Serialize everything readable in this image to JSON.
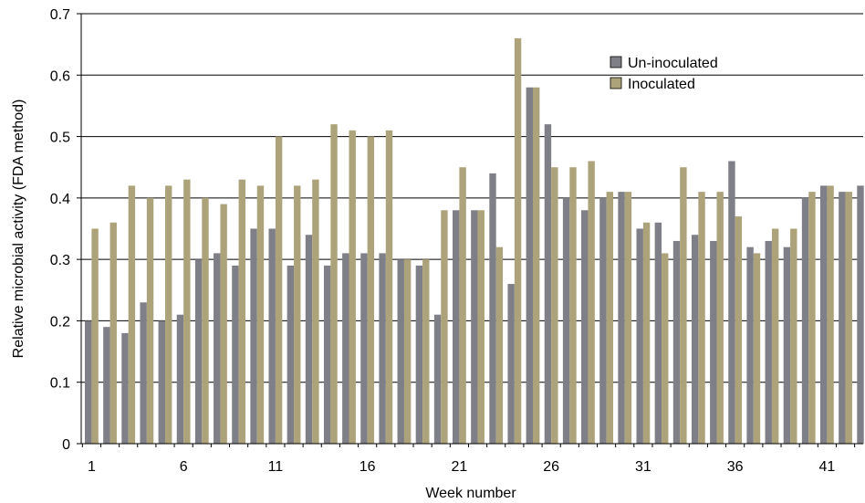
{
  "chart_data": {
    "type": "bar",
    "xlabel": "Week number",
    "ylabel": "Relative microbial activity (FDA method)",
    "ylim": [
      0,
      0.7
    ],
    "y_ticks": [
      "0",
      "0.1",
      "0.2",
      "0.3",
      "0.4",
      "0.5",
      "0.6",
      "0.7"
    ],
    "x_tick_labels": [
      {
        "week": 1,
        "label": "1"
      },
      {
        "week": 6,
        "label": "6"
      },
      {
        "week": 11,
        "label": "11"
      },
      {
        "week": 16,
        "label": "16"
      },
      {
        "week": 21,
        "label": "21"
      },
      {
        "week": 26,
        "label": "26"
      },
      {
        "week": 31,
        "label": "31"
      },
      {
        "week": 36,
        "label": "36"
      },
      {
        "week": 41,
        "label": "41"
      }
    ],
    "grid": true,
    "legend_position": "top-right",
    "categories": [
      1,
      2,
      3,
      4,
      5,
      6,
      7,
      8,
      9,
      10,
      11,
      12,
      13,
      14,
      15,
      16,
      17,
      18,
      19,
      20,
      21,
      22,
      23,
      24,
      25,
      26,
      27,
      28,
      29,
      30,
      31,
      32,
      33,
      34,
      35,
      36,
      37,
      38,
      39,
      40,
      41,
      42,
      43
    ],
    "series": [
      {
        "name": "Un-inoculated",
        "color": "#7f7f87",
        "values": [
          0.2,
          0.19,
          0.18,
          0.23,
          0.2,
          0.21,
          0.3,
          0.31,
          0.29,
          0.35,
          0.35,
          0.29,
          0.34,
          0.29,
          0.31,
          0.31,
          0.31,
          0.3,
          0.29,
          0.21,
          0.38,
          0.38,
          0.44,
          0.26,
          0.58,
          0.52,
          0.4,
          0.38,
          0.4,
          0.41,
          0.35,
          0.36,
          0.33,
          0.34,
          0.33,
          0.46,
          0.32,
          0.33,
          0.32,
          0.4,
          0.42,
          0.41,
          0.42
        ]
      },
      {
        "name": "Inoculated",
        "color": "#ada37a",
        "values": [
          0.35,
          0.36,
          0.42,
          0.4,
          0.42,
          0.43,
          0.4,
          0.39,
          0.43,
          0.42,
          0.5,
          0.42,
          0.43,
          0.52,
          0.51,
          0.5,
          0.51,
          0.3,
          0.3,
          0.38,
          0.45,
          0.38,
          0.32,
          0.66,
          0.58,
          0.45,
          0.45,
          0.46,
          0.41,
          0.41,
          0.36,
          0.31,
          0.45,
          0.41,
          0.41,
          0.37,
          0.31,
          0.35,
          0.35,
          0.41,
          0.42,
          0.41,
          0.42
        ]
      }
    ]
  }
}
